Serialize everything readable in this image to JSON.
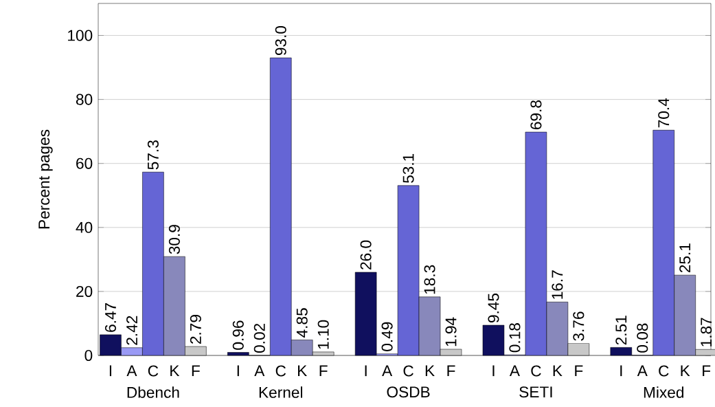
{
  "chart_data": {
    "type": "bar",
    "ylabel": "Percent pages",
    "categories": [
      "Dbench",
      "Kernel",
      "OSDB",
      "SETI",
      "Mixed"
    ],
    "series": [
      {
        "name": "I",
        "color": "#10105e",
        "values": [
          6.47,
          0.96,
          26.0,
          9.45,
          2.51
        ],
        "value_labels": [
          "6.47",
          "0.96",
          "26.0",
          "9.45",
          "2.51"
        ]
      },
      {
        "name": "A",
        "color": "#9a9af5",
        "values": [
          2.42,
          0.02,
          0.49,
          0.18,
          0.08
        ],
        "value_labels": [
          "2.42",
          "0.02",
          "0.49",
          "0.18",
          "0.08"
        ]
      },
      {
        "name": "C",
        "color": "#6565d5",
        "values": [
          57.3,
          93.0,
          53.1,
          69.8,
          70.4
        ],
        "value_labels": [
          "57.3",
          "93.0",
          "53.1",
          "69.8",
          "70.4"
        ]
      },
      {
        "name": "K",
        "color": "#8888bb",
        "values": [
          30.9,
          4.85,
          18.3,
          16.7,
          25.1
        ],
        "value_labels": [
          "30.9",
          "4.85",
          "18.3",
          "16.7",
          "25.1"
        ]
      },
      {
        "name": "F",
        "color": "#c8c8c8",
        "values": [
          2.79,
          1.1,
          1.94,
          3.76,
          1.87
        ],
        "value_labels": [
          "2.79",
          "1.10",
          "1.94",
          "3.76",
          "1.87"
        ]
      }
    ],
    "ylim": [
      0,
      110
    ],
    "yticks": [
      0,
      20,
      40,
      60,
      80,
      100
    ],
    "grid": "y"
  }
}
